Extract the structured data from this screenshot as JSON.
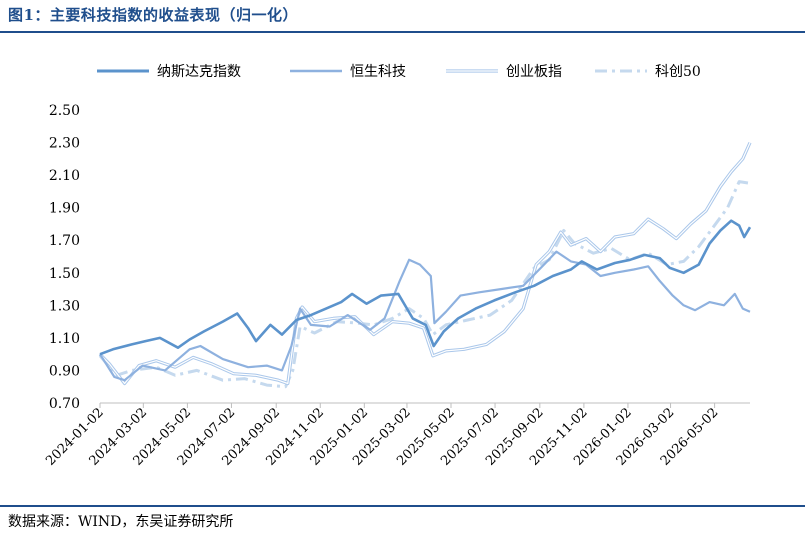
{
  "header": {
    "title": "图1：主要科技指数的收益表现（归一化）"
  },
  "footer": {
    "source": "数据来源：WIND，东吴证券研究所"
  },
  "chart_data": {
    "type": "line",
    "title": "图1：主要科技指数的收益表现（归一化）",
    "xlabel": "",
    "ylabel": "",
    "ylim": [
      0.7,
      2.5
    ],
    "yticks": [
      "0.70",
      "0.90",
      "1.10",
      "1.30",
      "1.50",
      "1.70",
      "1.90",
      "2.10",
      "2.30",
      "2.50"
    ],
    "x_ticks": [
      "2024-01-02",
      "2024-03-02",
      "2024-05-02",
      "2024-07-02",
      "2024-09-02",
      "2024-11-02",
      "2025-01-02",
      "2025-03-02",
      "2025-05-02",
      "2025-07-02",
      "2025-09-02",
      "2025-11-02",
      "2026-01-02",
      "2026-03-02",
      "2026-05-02"
    ],
    "x_range": [
      "2024-01-02",
      "2026-06-20"
    ],
    "legend_position": "top",
    "grid": false,
    "series": [
      {
        "name": "纳斯达克指数",
        "color": "#5b93cc",
        "style": "solid-thick",
        "points": [
          [
            "2024-01-02",
            1.0
          ],
          [
            "2024-01-20",
            1.03
          ],
          [
            "2024-02-15",
            1.06
          ],
          [
            "2024-03-05",
            1.08
          ],
          [
            "2024-03-25",
            1.1
          ],
          [
            "2024-04-19",
            1.04
          ],
          [
            "2024-05-05",
            1.09
          ],
          [
            "2024-05-25",
            1.14
          ],
          [
            "2024-06-20",
            1.2
          ],
          [
            "2024-07-10",
            1.25
          ],
          [
            "2024-07-25",
            1.16
          ],
          [
            "2024-08-05",
            1.08
          ],
          [
            "2024-08-25",
            1.18
          ],
          [
            "2024-09-10",
            1.12
          ],
          [
            "2024-09-30",
            1.21
          ],
          [
            "2024-10-20",
            1.24
          ],
          [
            "2024-11-10",
            1.28
          ],
          [
            "2024-12-01",
            1.32
          ],
          [
            "2024-12-16",
            1.37
          ],
          [
            "2025-01-05",
            1.31
          ],
          [
            "2025-01-25",
            1.36
          ],
          [
            "2025-02-18",
            1.37
          ],
          [
            "2025-03-10",
            1.22
          ],
          [
            "2025-03-28",
            1.18
          ],
          [
            "2025-04-08",
            1.05
          ],
          [
            "2025-04-22",
            1.14
          ],
          [
            "2025-05-12",
            1.22
          ],
          [
            "2025-06-05",
            1.28
          ],
          [
            "2025-07-01",
            1.33
          ],
          [
            "2025-07-30",
            1.38
          ],
          [
            "2025-08-25",
            1.42
          ],
          [
            "2025-09-20",
            1.48
          ],
          [
            "2025-10-15",
            1.52
          ],
          [
            "2025-10-30",
            1.57
          ],
          [
            "2025-11-20",
            1.52
          ],
          [
            "2025-12-15",
            1.56
          ],
          [
            "2026-01-05",
            1.58
          ],
          [
            "2026-01-25",
            1.61
          ],
          [
            "2026-02-15",
            1.59
          ],
          [
            "2026-03-01",
            1.53
          ],
          [
            "2026-03-20",
            1.5
          ],
          [
            "2026-04-10",
            1.55
          ],
          [
            "2026-04-25",
            1.68
          ],
          [
            "2026-05-10",
            1.76
          ],
          [
            "2026-05-25",
            1.82
          ],
          [
            "2026-06-05",
            1.79
          ],
          [
            "2026-06-12",
            1.72
          ],
          [
            "2026-06-20",
            1.78
          ]
        ]
      },
      {
        "name": "恒生科技",
        "color": "#8eb1df",
        "style": "solid",
        "points": [
          [
            "2024-01-02",
            1.0
          ],
          [
            "2024-01-22",
            0.86
          ],
          [
            "2024-02-05",
            0.84
          ],
          [
            "2024-03-01",
            0.93
          ],
          [
            "2024-04-01",
            0.9
          ],
          [
            "2024-05-05",
            1.03
          ],
          [
            "2024-05-20",
            1.05
          ],
          [
            "2024-06-20",
            0.97
          ],
          [
            "2024-07-25",
            0.92
          ],
          [
            "2024-08-20",
            0.93
          ],
          [
            "2024-09-10",
            0.9
          ],
          [
            "2024-09-23",
            1.05
          ],
          [
            "2024-10-05",
            1.28
          ],
          [
            "2024-10-20",
            1.18
          ],
          [
            "2024-11-15",
            1.17
          ],
          [
            "2024-12-10",
            1.24
          ],
          [
            "2025-01-10",
            1.15
          ],
          [
            "2025-01-30",
            1.22
          ],
          [
            "2025-02-20",
            1.45
          ],
          [
            "2025-03-05",
            1.58
          ],
          [
            "2025-03-20",
            1.55
          ],
          [
            "2025-04-04",
            1.48
          ],
          [
            "2025-04-09",
            1.19
          ],
          [
            "2025-04-25",
            1.26
          ],
          [
            "2025-05-15",
            1.36
          ],
          [
            "2025-06-10",
            1.38
          ],
          [
            "2025-07-10",
            1.4
          ],
          [
            "2025-08-10",
            1.42
          ],
          [
            "2025-09-10",
            1.56
          ],
          [
            "2025-09-25",
            1.63
          ],
          [
            "2025-10-15",
            1.57
          ],
          [
            "2025-11-05",
            1.55
          ],
          [
            "2025-11-25",
            1.48
          ],
          [
            "2025-12-15",
            1.5
          ],
          [
            "2026-01-10",
            1.52
          ],
          [
            "2026-01-30",
            1.54
          ],
          [
            "2026-02-15",
            1.45
          ],
          [
            "2026-03-05",
            1.36
          ],
          [
            "2026-03-20",
            1.3
          ],
          [
            "2026-04-05",
            1.27
          ],
          [
            "2026-04-25",
            1.32
          ],
          [
            "2026-05-15",
            1.3
          ],
          [
            "2026-05-30",
            1.37
          ],
          [
            "2026-06-10",
            1.28
          ],
          [
            "2026-06-20",
            1.26
          ]
        ]
      },
      {
        "name": "创业板指",
        "color": "#aac7ea",
        "style": "double",
        "points": [
          [
            "2024-01-02",
            1.0
          ],
          [
            "2024-01-15",
            0.94
          ],
          [
            "2024-02-05",
            0.82
          ],
          [
            "2024-02-25",
            0.93
          ],
          [
            "2024-03-20",
            0.96
          ],
          [
            "2024-04-15",
            0.92
          ],
          [
            "2024-05-10",
            0.98
          ],
          [
            "2024-06-05",
            0.94
          ],
          [
            "2024-07-05",
            0.88
          ],
          [
            "2024-08-05",
            0.87
          ],
          [
            "2024-09-05",
            0.84
          ],
          [
            "2024-09-18",
            0.82
          ],
          [
            "2024-09-30",
            1.22
          ],
          [
            "2024-10-08",
            1.29
          ],
          [
            "2024-10-25",
            1.2
          ],
          [
            "2024-11-20",
            1.22
          ],
          [
            "2024-12-20",
            1.23
          ],
          [
            "2025-01-15",
            1.12
          ],
          [
            "2025-02-10",
            1.2
          ],
          [
            "2025-03-05",
            1.19
          ],
          [
            "2025-03-25",
            1.16
          ],
          [
            "2025-04-07",
            0.99
          ],
          [
            "2025-04-25",
            1.02
          ],
          [
            "2025-05-20",
            1.03
          ],
          [
            "2025-06-20",
            1.06
          ],
          [
            "2025-07-15",
            1.14
          ],
          [
            "2025-08-10",
            1.28
          ],
          [
            "2025-08-28",
            1.55
          ],
          [
            "2025-09-15",
            1.63
          ],
          [
            "2025-10-01",
            1.75
          ],
          [
            "2025-10-15",
            1.67
          ],
          [
            "2025-11-05",
            1.71
          ],
          [
            "2025-11-25",
            1.63
          ],
          [
            "2025-12-15",
            1.72
          ],
          [
            "2026-01-10",
            1.74
          ],
          [
            "2026-01-30",
            1.83
          ],
          [
            "2026-02-20",
            1.77
          ],
          [
            "2026-03-10",
            1.71
          ],
          [
            "2026-03-30",
            1.8
          ],
          [
            "2026-04-20",
            1.88
          ],
          [
            "2026-05-10",
            2.03
          ],
          [
            "2026-05-25",
            2.12
          ],
          [
            "2026-06-10",
            2.2
          ],
          [
            "2026-06-20",
            2.3
          ]
        ]
      },
      {
        "name": "科创50",
        "color": "#c5d9ee",
        "style": "dashdot",
        "points": [
          [
            "2024-01-02",
            0.99
          ],
          [
            "2024-01-25",
            0.87
          ],
          [
            "2024-02-15",
            0.9
          ],
          [
            "2024-03-20",
            0.92
          ],
          [
            "2024-04-15",
            0.87
          ],
          [
            "2024-05-15",
            0.9
          ],
          [
            "2024-06-20",
            0.84
          ],
          [
            "2024-07-20",
            0.85
          ],
          [
            "2024-08-20",
            0.81
          ],
          [
            "2024-09-15",
            0.8
          ],
          [
            "2024-09-25",
            0.9
          ],
          [
            "2024-10-05",
            1.17
          ],
          [
            "2024-10-25",
            1.13
          ],
          [
            "2024-11-25",
            1.2
          ],
          [
            "2024-12-25",
            1.19
          ],
          [
            "2025-01-15",
            1.18
          ],
          [
            "2025-02-10",
            1.22
          ],
          [
            "2025-03-05",
            1.28
          ],
          [
            "2025-03-25",
            1.22
          ],
          [
            "2025-04-07",
            1.12
          ],
          [
            "2025-04-25",
            1.18
          ],
          [
            "2025-05-25",
            1.21
          ],
          [
            "2025-06-25",
            1.24
          ],
          [
            "2025-07-25",
            1.33
          ],
          [
            "2025-08-25",
            1.53
          ],
          [
            "2025-09-15",
            1.58
          ],
          [
            "2025-10-05",
            1.76
          ],
          [
            "2025-10-20",
            1.68
          ],
          [
            "2025-11-15",
            1.62
          ],
          [
            "2025-12-10",
            1.65
          ],
          [
            "2026-01-05",
            1.58
          ],
          [
            "2026-01-30",
            1.62
          ],
          [
            "2026-02-25",
            1.55
          ],
          [
            "2026-03-20",
            1.57
          ],
          [
            "2026-04-10",
            1.66
          ],
          [
            "2026-04-30",
            1.78
          ],
          [
            "2026-05-20",
            1.9
          ],
          [
            "2026-06-05",
            2.06
          ],
          [
            "2026-06-20",
            2.05
          ]
        ]
      }
    ]
  }
}
